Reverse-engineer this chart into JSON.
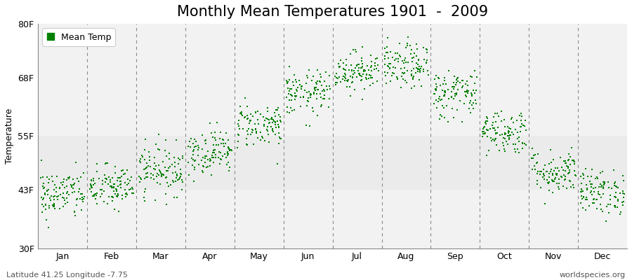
{
  "title": "Monthly Mean Temperatures 1901  -  2009",
  "ylabel": "Temperature",
  "bottom_left": "Latitude 41.25 Longitude -7.75",
  "bottom_right": "worldspecies.org",
  "legend_label": "Mean Temp",
  "marker_color": "#008000",
  "marker": "s",
  "marker_size": 2,
  "years": 109,
  "start_year": 1901,
  "end_year": 2009,
  "monthly_means_F": [
    42.0,
    43.5,
    47.5,
    51.5,
    57.5,
    64.5,
    69.5,
    70.5,
    64.5,
    56.0,
    47.0,
    42.5
  ],
  "monthly_std_F": [
    2.8,
    2.5,
    2.8,
    2.5,
    2.5,
    2.5,
    2.2,
    2.5,
    2.8,
    2.5,
    2.5,
    2.5
  ],
  "ylim": [
    30,
    80
  ],
  "yticks": [
    30,
    43,
    55,
    68,
    80
  ],
  "ytick_labels": [
    "30F",
    "43F",
    "55F",
    "68F",
    "80F"
  ],
  "plot_bg_color": "#ebebeb",
  "fig_color": "#ffffff",
  "grid_color": "#888888",
  "title_fontsize": 15,
  "label_fontsize": 9,
  "tick_fontsize": 9
}
